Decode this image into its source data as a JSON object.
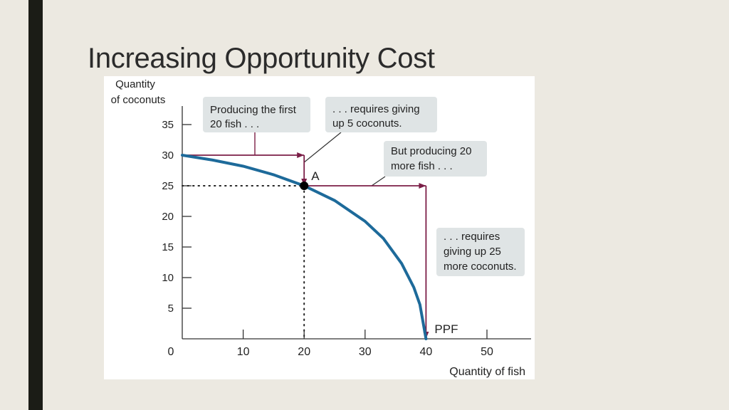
{
  "slide": {
    "title": "Increasing Opportunity Cost"
  },
  "colors": {
    "background": "#ece9e1",
    "accent_bar": "#1b1c16",
    "curve": "#1d6a9a",
    "arrow": "#7b1e47",
    "callout_fill": "#dfe4e5"
  },
  "chart_data": {
    "type": "line",
    "title": "",
    "xlabel": "Quantity of fish",
    "ylabel_lines": [
      "Quantity",
      "of coconuts"
    ],
    "xlim": [
      0,
      57
    ],
    "ylim": [
      0,
      38
    ],
    "x_ticks": [
      0,
      10,
      20,
      30,
      40,
      50
    ],
    "y_ticks": [
      5,
      10,
      15,
      20,
      25,
      30,
      35
    ],
    "origin_label": "0",
    "grid": false,
    "series": [
      {
        "name": "PPF",
        "points": [
          [
            0,
            30
          ],
          [
            5,
            29.2
          ],
          [
            10,
            28.2
          ],
          [
            15,
            26.8
          ],
          [
            20,
            25
          ],
          [
            25,
            22.6
          ],
          [
            30,
            19.2
          ],
          [
            33,
            16.4
          ],
          [
            36,
            12.3
          ],
          [
            38,
            8.4
          ],
          [
            39,
            5.6
          ],
          [
            40,
            0
          ]
        ]
      }
    ],
    "point_A": {
      "label": "A",
      "x": 20,
      "y": 25
    },
    "ppf_label": "PPF",
    "arrows": [
      {
        "from": [
          0,
          30
        ],
        "to": [
          20,
          30
        ]
      },
      {
        "from": [
          20,
          30
        ],
        "to": [
          20,
          25
        ]
      },
      {
        "from": [
          20,
          25
        ],
        "to": [
          40,
          25
        ]
      },
      {
        "from": [
          40,
          25
        ],
        "to": [
          40,
          0
        ]
      }
    ],
    "callouts": [
      {
        "lines": [
          "Producing the first",
          "20 fish . . ."
        ]
      },
      {
        "lines": [
          ". . . requires giving",
          "up 5 coconuts."
        ]
      },
      {
        "lines": [
          "But producing 20",
          "more fish . . ."
        ]
      },
      {
        "lines": [
          ". . . requires",
          "giving up 25",
          "more coconuts."
        ]
      }
    ]
  }
}
